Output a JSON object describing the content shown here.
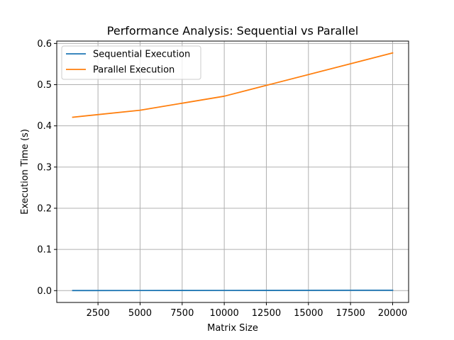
{
  "chart_data": {
    "type": "line",
    "title": "Performance Analysis: Sequential vs Parallel",
    "xlabel": "Matrix Size",
    "ylabel": "Execution Time (s)",
    "x": [
      1000,
      5000,
      10000,
      20000
    ],
    "series": [
      {
        "name": "Sequential Execution",
        "color": "#1f77b4",
        "values": [
          0.0002,
          0.0003,
          0.0005,
          0.0009
        ]
      },
      {
        "name": "Parallel Execution",
        "color": "#ff7f0e",
        "values": [
          0.421,
          0.438,
          0.472,
          0.577
        ]
      }
    ],
    "xlim": [
      50,
      20950
    ],
    "ylim": [
      -0.0287,
      0.6058
    ],
    "x_ticks": [
      2500,
      5000,
      7500,
      10000,
      12500,
      15000,
      17500,
      20000
    ],
    "y_ticks": [
      0.0,
      0.1,
      0.2,
      0.3,
      0.4,
      0.5,
      0.6
    ],
    "x_tick_labels": [
      "2500",
      "5000",
      "7500",
      "10000",
      "12500",
      "15000",
      "17500",
      "20000"
    ],
    "y_tick_labels": [
      "0.0",
      "0.1",
      "0.2",
      "0.3",
      "0.4",
      "0.5",
      "0.6"
    ],
    "grid": true,
    "legend_position": "top-left"
  }
}
